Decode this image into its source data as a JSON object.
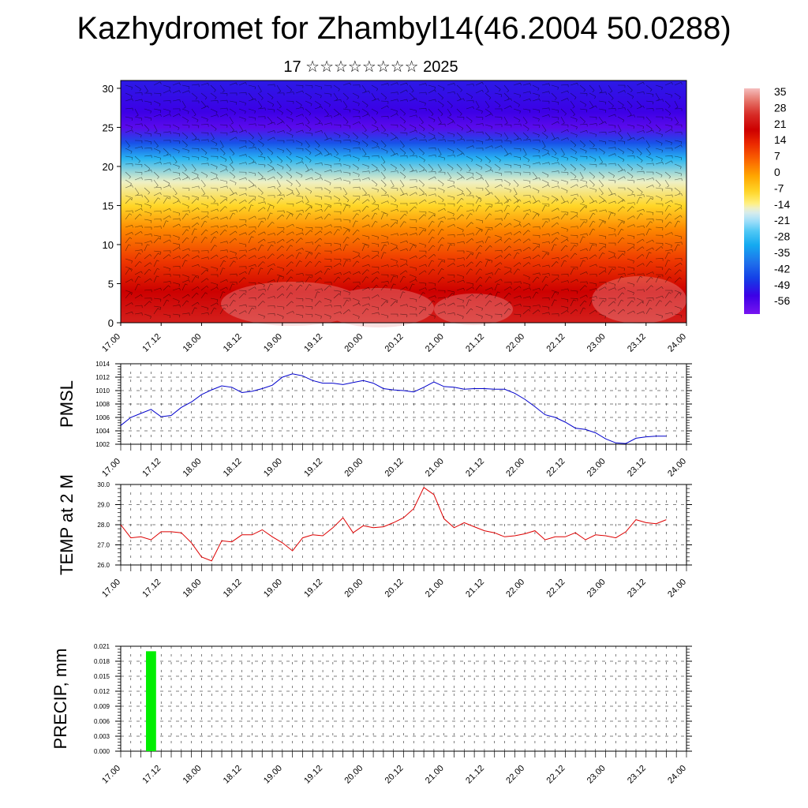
{
  "title": "Kazhydromet for Zhambyl14(46.2004 50.0288)",
  "subtitle": "17 ☆☆☆☆☆☆☆☆ 2025",
  "colors": {
    "pmsl_line": "#0000cc",
    "temp_line": "#dd0000",
    "precip_bar": "#00ee00",
    "grid": "#000000"
  },
  "chart_data": [
    {
      "type": "heatmap",
      "title": "",
      "xlabel": "",
      "ylabel": "",
      "x_ticks": [
        "17.00",
        "17.12",
        "18.00",
        "18.12",
        "19.00",
        "19.12",
        "20.00",
        "20.12",
        "21.00",
        "21.12",
        "22.00",
        "22.12",
        "23.00",
        "23.12",
        "24.00"
      ],
      "y_ticks": [
        "0",
        "5",
        "10",
        "15",
        "20",
        "25",
        "30"
      ],
      "ylim": [
        0,
        31
      ],
      "levels_description": "temperature by height level, warmest near surface, coldest near level 25",
      "profile": [
        {
          "level": 0,
          "value": 25
        },
        {
          "level": 4,
          "value": 20
        },
        {
          "level": 8,
          "value": 12
        },
        {
          "level": 12,
          "value": 3
        },
        {
          "level": 15,
          "value": -7
        },
        {
          "level": 18,
          "value": -14
        },
        {
          "level": 21,
          "value": -28
        },
        {
          "level": 23,
          "value": -42
        },
        {
          "level": 25,
          "value": -56
        },
        {
          "level": 27,
          "value": -52
        },
        {
          "level": 31,
          "value": -49
        }
      ],
      "colorbar": {
        "labels": [
          "35",
          "28",
          "21",
          "14",
          "7",
          "0",
          "-7",
          "-14",
          "-21",
          "-28",
          "-35",
          "-42",
          "-49",
          "-56"
        ],
        "range": [
          -60,
          38
        ]
      },
      "overlay": "wind barbs"
    },
    {
      "type": "line",
      "title": "",
      "ylabel": "PMSL",
      "xlabel": "",
      "x_ticks": [
        "17.00",
        "17.12",
        "18.00",
        "18.12",
        "19.00",
        "19.12",
        "20.00",
        "20.12",
        "21.00",
        "21.12",
        "22.00",
        "22.12",
        "23.00",
        "23.12",
        "24.00"
      ],
      "y_ticks": [
        "1002",
        "1004",
        "1006",
        "1008",
        "1010",
        "1012",
        "1014"
      ],
      "ylim": [
        1002,
        1014
      ],
      "xlim": [
        0,
        56
      ],
      "series": [
        {
          "x": [
            0,
            1,
            2,
            3,
            4,
            5,
            6,
            7,
            8,
            9,
            10,
            11,
            12,
            13,
            14,
            15,
            16,
            17,
            18,
            19,
            20,
            21,
            22,
            23,
            24,
            25,
            26,
            27,
            28,
            29,
            30,
            31,
            32,
            33,
            34,
            35,
            36,
            37,
            38,
            39,
            40,
            41,
            42,
            43,
            44,
            45,
            46,
            47,
            48,
            49,
            50,
            51,
            52,
            53,
            54
          ],
          "y": [
            1004.8,
            1006.0,
            1006.6,
            1007.2,
            1006.1,
            1006.3,
            1007.5,
            1008.3,
            1009.4,
            1010.1,
            1010.7,
            1010.5,
            1009.7,
            1009.9,
            1010.3,
            1010.8,
            1012.0,
            1012.5,
            1012.2,
            1011.5,
            1011.1,
            1011.1,
            1010.9,
            1011.2,
            1011.5,
            1011.1,
            1010.3,
            1010.1,
            1010.0,
            1009.8,
            1010.5,
            1011.3,
            1010.6,
            1010.5,
            1010.2,
            1010.3,
            1010.3,
            1010.2,
            1010.2,
            1009.6,
            1008.7,
            1007.6,
            1006.4,
            1006.0,
            1005.3,
            1004.4,
            1004.2,
            1003.7,
            1002.8,
            1002.2,
            1002.1,
            1002.9,
            1003.1,
            1003.2,
            1003.2
          ]
        }
      ]
    },
    {
      "type": "line",
      "title": "",
      "ylabel": "TEMP at 2 M",
      "xlabel": "",
      "x_ticks": [
        "17.00",
        "17.12",
        "18.00",
        "18.12",
        "19.00",
        "19.12",
        "20.00",
        "20.12",
        "21.00",
        "21.12",
        "22.00",
        "22.12",
        "23.00",
        "23.12",
        "24.00"
      ],
      "y_ticks": [
        "26.0",
        "27.0",
        "28.0",
        "29.0",
        "30.0"
      ],
      "ylim": [
        26.0,
        30.0
      ],
      "xlim": [
        0,
        56
      ],
      "series": [
        {
          "x": [
            0,
            1,
            2,
            3,
            4,
            5,
            6,
            7,
            8,
            9,
            10,
            11,
            12,
            13,
            14,
            15,
            16,
            17,
            18,
            19,
            20,
            21,
            22,
            23,
            24,
            25,
            26,
            27,
            28,
            29,
            30,
            31,
            32,
            33,
            34,
            35,
            36,
            37,
            38,
            39,
            40,
            41,
            42,
            43,
            44,
            45,
            46,
            47,
            48,
            49,
            50,
            51,
            52,
            53,
            54
          ],
          "y": [
            28.0,
            27.35,
            27.4,
            27.25,
            27.65,
            27.65,
            27.6,
            27.1,
            26.4,
            26.2,
            27.2,
            27.15,
            27.5,
            27.5,
            27.75,
            27.4,
            27.1,
            26.7,
            27.35,
            27.5,
            27.45,
            27.85,
            28.35,
            27.6,
            27.95,
            27.85,
            27.9,
            28.1,
            28.35,
            28.8,
            29.85,
            29.5,
            28.3,
            27.85,
            28.1,
            27.9,
            27.7,
            27.6,
            27.4,
            27.45,
            27.55,
            27.7,
            27.25,
            27.4,
            27.4,
            27.6,
            27.25,
            27.5,
            27.45,
            27.35,
            27.65,
            28.25,
            28.1,
            28.05,
            28.25
          ]
        }
      ]
    },
    {
      "type": "bar",
      "title": "",
      "ylabel": "PRECIP, mm",
      "xlabel": "",
      "x_ticks": [
        "17.00",
        "17.12",
        "18.00",
        "18.12",
        "19.00",
        "19.12",
        "20.00",
        "20.12",
        "21.00",
        "21.12",
        "22.00",
        "22.12",
        "23.00",
        "23.12",
        "24.00"
      ],
      "y_ticks": [
        "0.000",
        "0.003",
        "0.006",
        "0.009",
        "0.012",
        "0.015",
        "0.018",
        "0.021"
      ],
      "ylim": [
        0,
        0.021
      ],
      "xlim": [
        0,
        56
      ],
      "bars": [
        {
          "x": 3,
          "value": 0.02
        }
      ]
    }
  ]
}
